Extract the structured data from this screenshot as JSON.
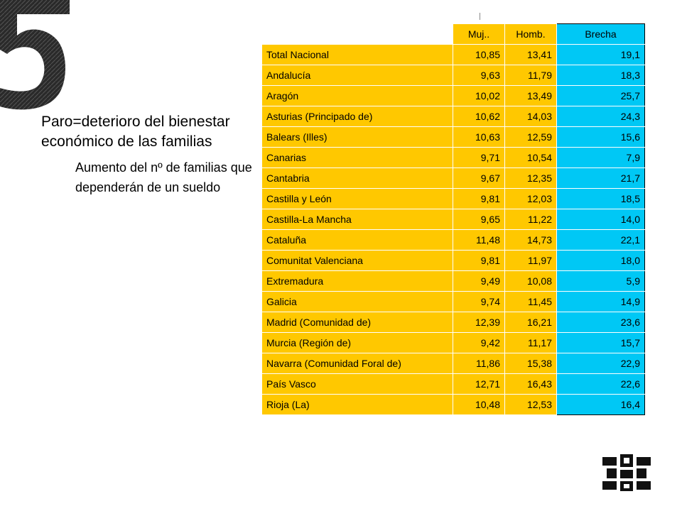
{
  "bullets": {
    "main": "Paro=deterioro del bienestar económico de las familias",
    "sub": "Aumento del nº de familias que dependerán de un sueldo"
  },
  "table": {
    "headers": [
      "",
      "Muj..",
      "Homb.",
      "Brecha"
    ],
    "rows": [
      [
        "Total Nacional",
        "10,85",
        "13,41",
        "19,1"
      ],
      [
        "Andalucía",
        "9,63",
        "11,79",
        "18,3"
      ],
      [
        "Aragón",
        "10,02",
        "13,49",
        "25,7"
      ],
      [
        "Asturias (Principado de)",
        "10,62",
        "14,03",
        "24,3"
      ],
      [
        "Balears (Illes)",
        "10,63",
        "12,59",
        "15,6"
      ],
      [
        "Canarias",
        "9,71",
        "10,54",
        "7,9"
      ],
      [
        "Cantabria",
        "9,67",
        "12,35",
        "21,7"
      ],
      [
        "Castilla y León",
        "9,81",
        "12,03",
        "18,5"
      ],
      [
        "Castilla-La Mancha",
        "9,65",
        "11,22",
        "14,0"
      ],
      [
        "Cataluña",
        "11,48",
        "14,73",
        "22,1"
      ],
      [
        "Comunitat Valenciana",
        "9,81",
        "11,97",
        "18,0"
      ],
      [
        "Extremadura",
        "9,49",
        "10,08",
        "5,9"
      ],
      [
        "Galicia",
        "9,74",
        "11,45",
        "14,9"
      ],
      [
        "Madrid (Comunidad de)",
        "12,39",
        "16,21",
        "23,6"
      ],
      [
        "Murcia (Región de)",
        "9,42",
        "11,17",
        "15,7"
      ],
      [
        "Navarra (Comunidad Foral de)",
        "11,86",
        "15,38",
        "22,9"
      ],
      [
        "País Vasco",
        "12,71",
        "16,43",
        "22,6"
      ],
      [
        "Rioja (La)",
        "10,48",
        "12,53",
        "16,4"
      ]
    ]
  },
  "colors": {
    "table_fill": "#FFC800",
    "brecha_fill": "#00C8F5"
  },
  "decor": {
    "numeral": "5",
    "logo": "university-logo"
  }
}
